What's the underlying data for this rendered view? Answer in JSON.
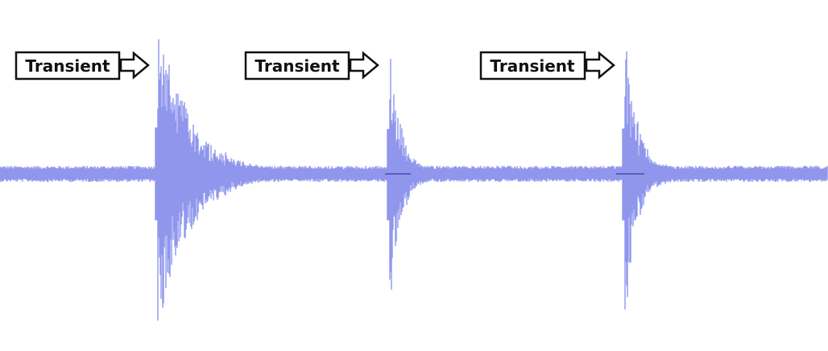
{
  "waveform": {
    "color": "#8f96ec",
    "centerline_color": "#3f3fa0",
    "transient_times": [
      0.188,
      0.468,
      0.752
    ]
  },
  "annotations": [
    {
      "text": "Transient",
      "icon": "arrow-right-outline-icon"
    },
    {
      "text": "Transient",
      "icon": "arrow-right-outline-icon"
    },
    {
      "text": "Transient",
      "icon": "arrow-right-outline-icon"
    }
  ]
}
